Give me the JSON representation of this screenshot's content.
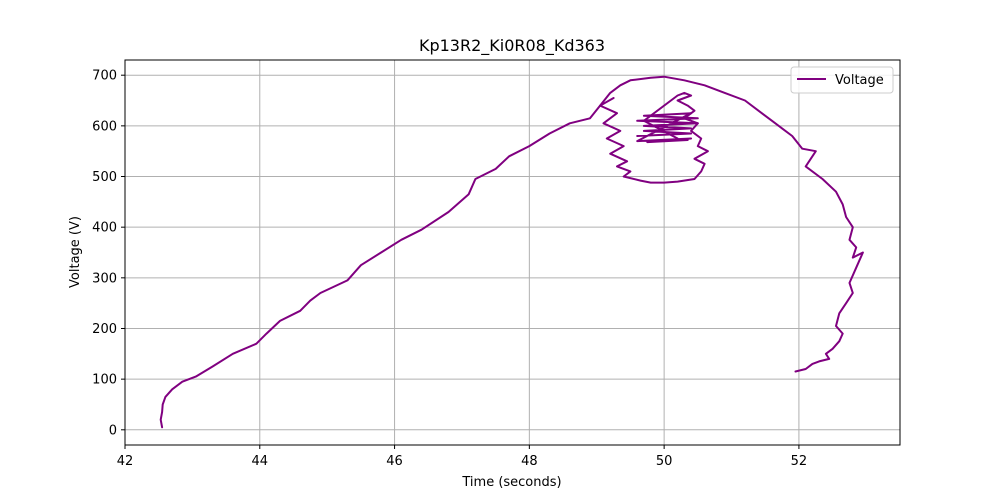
{
  "chart_data": {
    "type": "line",
    "title": "Kp13R2_Ki0R08_Kd363",
    "xlabel": "Time (seconds)",
    "ylabel": "Voltage (V)",
    "xlim": [
      42.0,
      53.5
    ],
    "ylim": [
      -30,
      730
    ],
    "xticks": [
      42,
      44,
      46,
      48,
      50,
      52
    ],
    "yticks": [
      0,
      100,
      200,
      300,
      400,
      500,
      600,
      700
    ],
    "grid": true,
    "legend_position": "top-right",
    "series": [
      {
        "name": "Voltage",
        "color": "#800080",
        "x": [
          42.55,
          42.53,
          42.55,
          42.56,
          42.6,
          42.7,
          42.85,
          43.05,
          43.3,
          43.6,
          43.95,
          44.1,
          44.3,
          44.6,
          44.75,
          44.9,
          45.3,
          45.5,
          45.8,
          46.1,
          46.4,
          46.8,
          47.1,
          47.2,
          47.5,
          47.7,
          48.0,
          48.3,
          48.6,
          48.9,
          49.05,
          49.2,
          49.35,
          49.5,
          49.8,
          50.0,
          50.3,
          50.6,
          50.9,
          51.2,
          51.45,
          51.6,
          51.75,
          51.9,
          52.05,
          52.25,
          52.1,
          52.35,
          52.55,
          52.65,
          52.7,
          52.8,
          52.75,
          52.85,
          52.8,
          52.95,
          52.85,
          52.75,
          52.8,
          52.7,
          52.6,
          52.55,
          52.65,
          52.6,
          52.5,
          52.4,
          52.45,
          52.3,
          52.2,
          52.1,
          51.95
        ],
        "y": [
          5,
          20,
          35,
          50,
          65,
          80,
          95,
          105,
          125,
          150,
          170,
          190,
          215,
          235,
          255,
          270,
          295,
          325,
          350,
          375,
          395,
          430,
          465,
          495,
          515,
          540,
          560,
          585,
          605,
          615,
          640,
          665,
          680,
          690,
          695,
          697,
          690,
          680,
          665,
          650,
          625,
          610,
          595,
          580,
          555,
          550,
          520,
          495,
          470,
          445,
          420,
          400,
          375,
          360,
          340,
          350,
          320,
          290,
          270,
          250,
          230,
          205,
          190,
          175,
          160,
          150,
          140,
          135,
          130,
          120,
          115
        ]
      },
      {
        "name": "",
        "color": "#800080",
        "x": [
          49.25,
          49.05,
          49.3,
          49.1,
          49.35,
          49.15,
          49.4,
          49.2,
          49.45,
          49.3,
          49.5,
          49.4,
          49.65,
          49.8,
          50.0,
          50.2,
          50.45,
          50.55,
          50.6,
          50.45,
          50.65,
          50.5,
          50.55,
          50.4,
          50.5,
          50.3,
          50.45,
          50.35,
          50.2,
          50.4,
          50.3,
          50.2,
          49.7,
          50.2
        ],
        "y": [
          655,
          640,
          625,
          605,
          590,
          575,
          560,
          545,
          530,
          520,
          510,
          500,
          492,
          488,
          488,
          490,
          495,
          510,
          525,
          535,
          550,
          560,
          575,
          590,
          605,
          615,
          630,
          640,
          650,
          660,
          665,
          660,
          610,
          575
        ]
      },
      {
        "name": "",
        "color": "#800080",
        "x": [
          49.6,
          50.4,
          49.7,
          50.4,
          49.7,
          50.5,
          49.6,
          50.5,
          49.7,
          50.4,
          49.6,
          50.4,
          49.75,
          50.35
        ],
        "y": [
          580,
          585,
          590,
          595,
          600,
          605,
          610,
          615,
          620,
          625,
          570,
          575,
          568,
          572
        ]
      }
    ]
  }
}
